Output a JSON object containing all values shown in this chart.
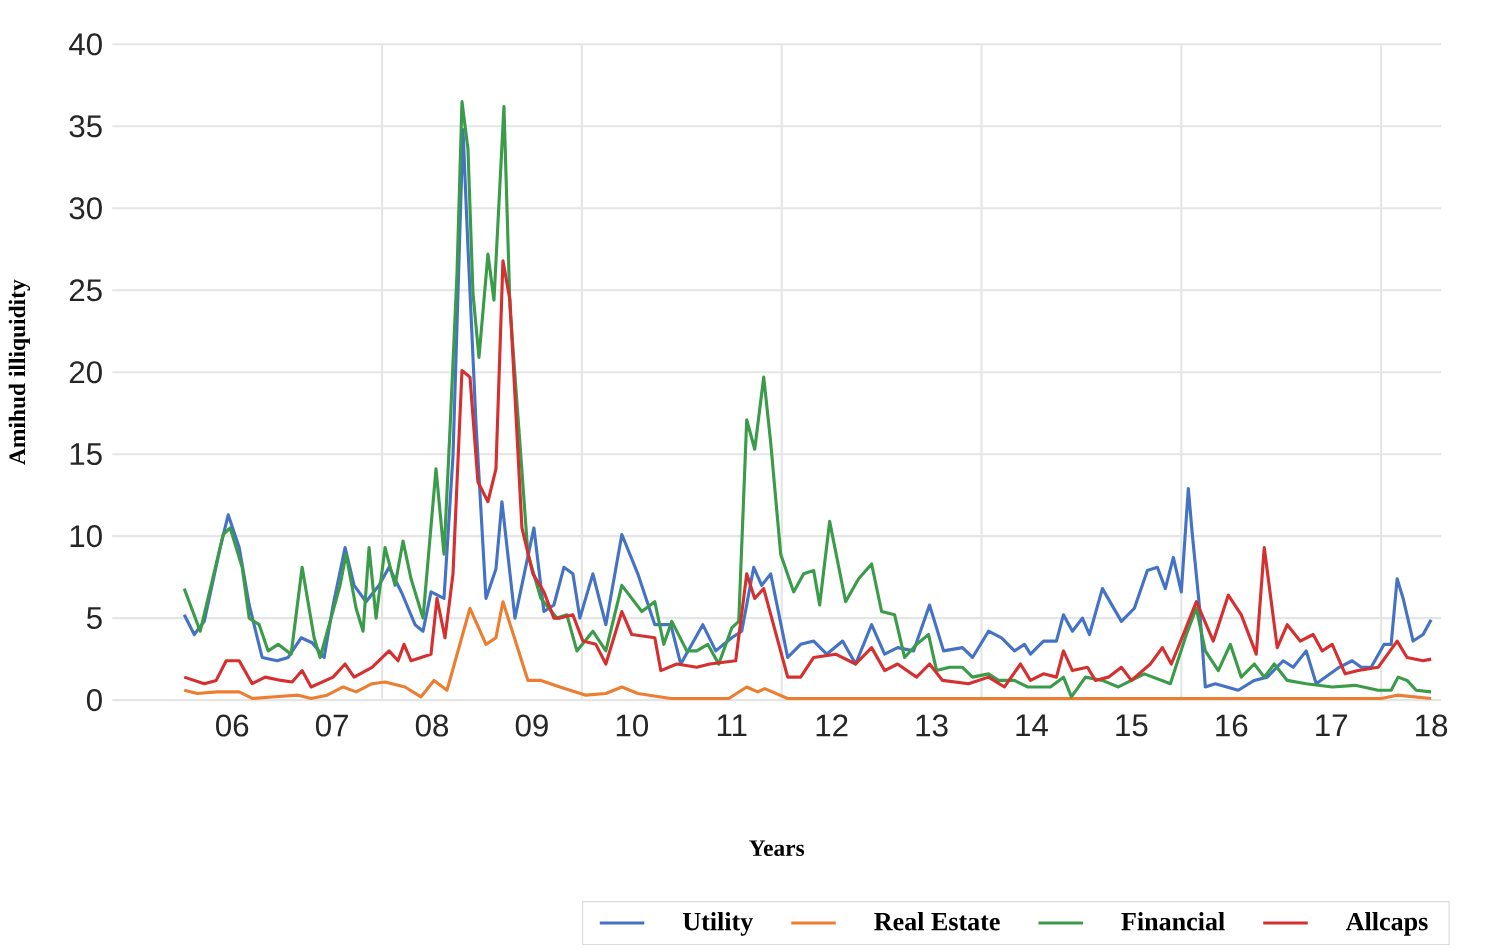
{
  "chart_data": {
    "type": "line",
    "xlabel": "Years",
    "ylabel": "Amihud illiquidity",
    "xlim": [
      2004.8,
      2018.1
    ],
    "ylim": [
      0,
      40
    ],
    "xticks": [
      {
        "value": 2006,
        "label": "06"
      },
      {
        "value": 2007,
        "label": "07"
      },
      {
        "value": 2007.5,
        "label": null
      },
      {
        "value": 2008,
        "label": "08"
      },
      {
        "value": 2009,
        "label": "09"
      },
      {
        "value": 2009.5,
        "label": null
      },
      {
        "value": 2010,
        "label": "10"
      },
      {
        "value": 2011,
        "label": "11"
      },
      {
        "value": 2011.5,
        "label": null
      },
      {
        "value": 2012,
        "label": "12"
      },
      {
        "value": 2013,
        "label": "13"
      },
      {
        "value": 2013.5,
        "label": null
      },
      {
        "value": 2014,
        "label": "14"
      },
      {
        "value": 2015,
        "label": "15"
      },
      {
        "value": 2015.5,
        "label": null
      },
      {
        "value": 2016,
        "label": "16"
      },
      {
        "value": 2017,
        "label": "17"
      },
      {
        "value": 2017.5,
        "label": null
      },
      {
        "value": 2018,
        "label": "18"
      }
    ],
    "yticks": [
      0,
      5,
      10,
      15,
      20,
      25,
      30,
      35,
      40
    ],
    "grid": true,
    "legend": "bottom",
    "series": [
      {
        "name": "Utility",
        "color": "#4472c4",
        "x": [
          2005.52,
          2005.62,
          2005.72,
          2005.88,
          2005.96,
          2006.07,
          2006.17,
          2006.3,
          2006.45,
          2006.56,
          2006.69,
          2006.8,
          2006.92,
          2007.01,
          2007.13,
          2007.22,
          2007.34,
          2007.47,
          2007.57,
          2007.7,
          2007.83,
          2007.91,
          2007.99,
          2008.12,
          2008.21,
          2008.31,
          2008.36,
          2008.44,
          2008.54,
          2008.64,
          2008.7,
          2008.83,
          2009.02,
          2009.12,
          2009.22,
          2009.32,
          2009.41,
          2009.48,
          2009.61,
          2009.74,
          2009.9,
          2010.06,
          2010.23,
          2010.39,
          2010.49,
          2010.71,
          2010.84,
          2011.0,
          2011.1,
          2011.22,
          2011.3,
          2011.39,
          2011.56,
          2011.69,
          2011.82,
          2011.95,
          2012.11,
          2012.24,
          2012.4,
          2012.53,
          2012.66,
          2012.82,
          2012.98,
          2013.12,
          2013.31,
          2013.41,
          2013.57,
          2013.7,
          2013.83,
          2013.93,
          2013.99,
          2014.12,
          2014.25,
          2014.32,
          2014.41,
          2014.51,
          2014.58,
          2014.71,
          2014.9,
          2015.03,
          2015.16,
          2015.26,
          2015.34,
          2015.42,
          2015.5,
          2015.57,
          2015.61,
          2015.68,
          2015.74,
          2015.84,
          2016.07,
          2016.23,
          2016.36,
          2016.52,
          2016.62,
          2016.75,
          2016.85,
          2017.08,
          2017.21,
          2017.3,
          2017.4,
          2017.53,
          2017.6,
          2017.66,
          2017.72,
          2017.82,
          2017.92,
          2018.0
        ],
        "values": [
          5.2,
          4.0,
          4.8,
          9.3,
          11.3,
          9.3,
          5.8,
          2.6,
          2.4,
          2.6,
          3.8,
          3.5,
          2.6,
          5.8,
          9.3,
          7.0,
          6.0,
          7.0,
          8.1,
          6.5,
          4.6,
          4.2,
          6.6,
          6.2,
          14.9,
          34.8,
          27.6,
          16.9,
          6.2,
          8.0,
          12.1,
          5.0,
          10.5,
          5.4,
          5.8,
          8.1,
          7.7,
          5.0,
          7.7,
          4.6,
          10.1,
          7.7,
          4.6,
          4.6,
          2.2,
          4.6,
          3.0,
          3.8,
          4.2,
          8.1,
          7.0,
          7.7,
          2.6,
          3.4,
          3.6,
          2.8,
          3.6,
          2.2,
          4.6,
          2.8,
          3.2,
          3.0,
          5.8,
          3.0,
          3.2,
          2.6,
          4.2,
          3.8,
          3.0,
          3.4,
          2.8,
          3.6,
          3.6,
          5.2,
          4.2,
          5.0,
          4.0,
          6.8,
          4.8,
          5.6,
          7.9,
          8.1,
          6.8,
          8.7,
          6.6,
          12.9,
          10.1,
          5.8,
          0.8,
          1.0,
          0.6,
          1.2,
          1.4,
          2.4,
          2.0,
          3.0,
          1.0,
          2.0,
          2.4,
          2.0,
          2.0,
          3.4,
          3.4,
          7.4,
          6.2,
          3.6,
          4.0,
          4.9
        ]
      },
      {
        "name": "Real Estate",
        "color": "#ed7d31",
        "x": [
          2005.52,
          2005.65,
          2005.85,
          2006.07,
          2006.2,
          2006.43,
          2006.66,
          2006.79,
          2006.95,
          2007.11,
          2007.24,
          2007.4,
          2007.53,
          2007.73,
          2007.89,
          2008.02,
          2008.15,
          2008.38,
          2008.54,
          2008.64,
          2008.71,
          2008.96,
          2009.09,
          2009.28,
          2009.54,
          2009.74,
          2009.9,
          2010.06,
          2010.39,
          2010.65,
          2010.97,
          2011.15,
          2011.26,
          2011.33,
          2011.56,
          2011.95,
          2012.5,
          2012.92,
          2013.24,
          2013.5,
          2014.0,
          2014.5,
          2015.0,
          2015.5,
          2016.0,
          2016.5,
          2017.0,
          2017.5,
          2017.66,
          2018.0
        ],
        "values": [
          0.6,
          0.4,
          0.5,
          0.5,
          0.1,
          0.2,
          0.3,
          0.1,
          0.3,
          0.8,
          0.5,
          1.0,
          1.1,
          0.8,
          0.2,
          1.2,
          0.6,
          5.6,
          3.4,
          3.8,
          6.0,
          1.2,
          1.2,
          0.8,
          0.3,
          0.4,
          0.8,
          0.4,
          0.1,
          0.1,
          0.1,
          0.8,
          0.5,
          0.7,
          0.1,
          0.1,
          0.1,
          0.1,
          0.1,
          0.1,
          0.1,
          0.1,
          0.1,
          0.1,
          0.1,
          0.1,
          0.1,
          0.1,
          0.3,
          0.1
        ]
      },
      {
        "name": "Financial",
        "color": "#3a9b48",
        "x": [
          2005.52,
          2005.68,
          2005.91,
          2005.98,
          2006.1,
          2006.17,
          2006.27,
          2006.36,
          2006.46,
          2006.59,
          2006.7,
          2006.82,
          2006.88,
          2007.08,
          2007.14,
          2007.24,
          2007.31,
          2007.37,
          2007.44,
          2007.53,
          2007.63,
          2007.71,
          2007.79,
          2007.91,
          2008.04,
          2008.12,
          2008.18,
          2008.25,
          2008.3,
          2008.36,
          2008.41,
          2008.47,
          2008.56,
          2008.62,
          2008.72,
          2008.78,
          2008.86,
          2008.96,
          2009.09,
          2009.25,
          2009.35,
          2009.45,
          2009.61,
          2009.74,
          2009.9,
          2010.1,
          2010.23,
          2010.32,
          2010.4,
          2010.55,
          2010.65,
          2010.76,
          2010.87,
          2011.0,
          2011.07,
          2011.15,
          2011.23,
          2011.32,
          2011.39,
          2011.49,
          2011.62,
          2011.72,
          2011.82,
          2011.88,
          2011.98,
          2012.14,
          2012.27,
          2012.4,
          2012.5,
          2012.63,
          2012.73,
          2012.85,
          2012.97,
          2013.05,
          2013.18,
          2013.31,
          2013.41,
          2013.57,
          2013.67,
          2013.83,
          2013.96,
          2014.19,
          2014.32,
          2014.4,
          2014.54,
          2014.71,
          2014.87,
          2015.13,
          2015.39,
          2015.55,
          2015.65,
          2015.74,
          2015.87,
          2015.99,
          2016.1,
          2016.23,
          2016.33,
          2016.43,
          2016.56,
          2016.75,
          2017.01,
          2017.24,
          2017.47,
          2017.6,
          2017.67,
          2017.76,
          2017.85,
          2018.0
        ],
        "values": [
          6.8,
          4.2,
          10.1,
          10.5,
          8.1,
          5.0,
          4.6,
          3.0,
          3.4,
          2.8,
          8.1,
          3.8,
          2.6,
          7.0,
          8.9,
          5.6,
          4.2,
          9.3,
          5.0,
          9.3,
          7.0,
          9.7,
          7.4,
          5.0,
          14.1,
          8.9,
          16.5,
          26.0,
          36.5,
          33.6,
          24.8,
          20.9,
          27.2,
          24.4,
          36.2,
          24.0,
          17.3,
          8.9,
          6.2,
          5.0,
          5.2,
          3.0,
          4.2,
          3.0,
          7.0,
          5.4,
          6.0,
          3.4,
          4.8,
          3.0,
          3.0,
          3.4,
          2.2,
          4.4,
          4.8,
          17.1,
          15.3,
          19.7,
          15.7,
          8.9,
          6.6,
          7.7,
          7.9,
          5.8,
          10.9,
          6.0,
          7.4,
          8.3,
          5.4,
          5.2,
          2.6,
          3.4,
          4.0,
          1.8,
          2.0,
          2.0,
          1.4,
          1.6,
          1.2,
          1.2,
          0.8,
          0.8,
          1.4,
          0.2,
          1.4,
          1.2,
          0.8,
          1.6,
          1.0,
          4.0,
          5.6,
          3.0,
          1.8,
          3.4,
          1.4,
          2.2,
          1.4,
          2.2,
          1.2,
          1.0,
          0.8,
          0.9,
          0.6,
          0.6,
          1.4,
          1.2,
          0.6,
          0.5
        ]
      },
      {
        "name": "Allcaps",
        "color": "#d62f2f",
        "x": [
          2005.52,
          2005.72,
          2005.84,
          2005.94,
          2006.07,
          2006.2,
          2006.33,
          2006.49,
          2006.6,
          2006.7,
          2006.79,
          2007.01,
          2007.13,
          2007.22,
          2007.4,
          2007.57,
          2007.66,
          2007.72,
          2007.79,
          2007.99,
          2008.05,
          2008.13,
          2008.21,
          2008.3,
          2008.38,
          2008.46,
          2008.56,
          2008.64,
          2008.71,
          2008.78,
          2008.9,
          2009.01,
          2009.12,
          2009.22,
          2009.28,
          2009.41,
          2009.51,
          2009.64,
          2009.74,
          2009.9,
          2010.0,
          2010.23,
          2010.29,
          2010.45,
          2010.65,
          2010.78,
          2011.04,
          2011.15,
          2011.23,
          2011.32,
          2011.56,
          2011.69,
          2011.82,
          2012.04,
          2012.24,
          2012.4,
          2012.53,
          2012.66,
          2012.85,
          2012.98,
          2013.11,
          2013.37,
          2013.57,
          2013.73,
          2013.89,
          2013.99,
          2014.12,
          2014.25,
          2014.32,
          2014.41,
          2014.56,
          2014.64,
          2014.77,
          2014.9,
          2015.0,
          2015.19,
          2015.31,
          2015.4,
          2015.52,
          2015.65,
          2015.82,
          2015.97,
          2016.1,
          2016.25,
          2016.33,
          2016.46,
          2016.56,
          2016.69,
          2016.82,
          2016.91,
          2017.01,
          2017.14,
          2017.27,
          2017.47,
          2017.66,
          2017.76,
          2017.92,
          2018.0
        ],
        "values": [
          1.4,
          1.0,
          1.2,
          2.4,
          2.4,
          1.0,
          1.4,
          1.2,
          1.1,
          1.8,
          0.8,
          1.4,
          2.2,
          1.4,
          2.0,
          3.0,
          2.4,
          3.4,
          2.4,
          2.8,
          6.2,
          3.8,
          7.7,
          20.1,
          19.7,
          13.3,
          12.1,
          14.1,
          26.8,
          24.4,
          10.5,
          7.7,
          6.6,
          5.0,
          5.0,
          5.2,
          3.6,
          3.4,
          2.2,
          5.4,
          4.0,
          3.8,
          1.8,
          2.2,
          2.0,
          2.2,
          2.4,
          7.7,
          6.2,
          6.8,
          1.4,
          1.4,
          2.6,
          2.8,
          2.2,
          3.2,
          1.8,
          2.2,
          1.4,
          2.2,
          1.2,
          1.0,
          1.4,
          0.8,
          2.2,
          1.2,
          1.6,
          1.4,
          3.0,
          1.8,
          2.0,
          1.2,
          1.4,
          2.0,
          1.2,
          2.2,
          3.2,
          2.2,
          4.0,
          6.0,
          3.6,
          6.4,
          5.2,
          2.8,
          9.3,
          3.2,
          4.6,
          3.6,
          4.0,
          3.0,
          3.4,
          1.6,
          1.8,
          2.0,
          3.6,
          2.6,
          2.4,
          2.5
        ]
      }
    ]
  }
}
